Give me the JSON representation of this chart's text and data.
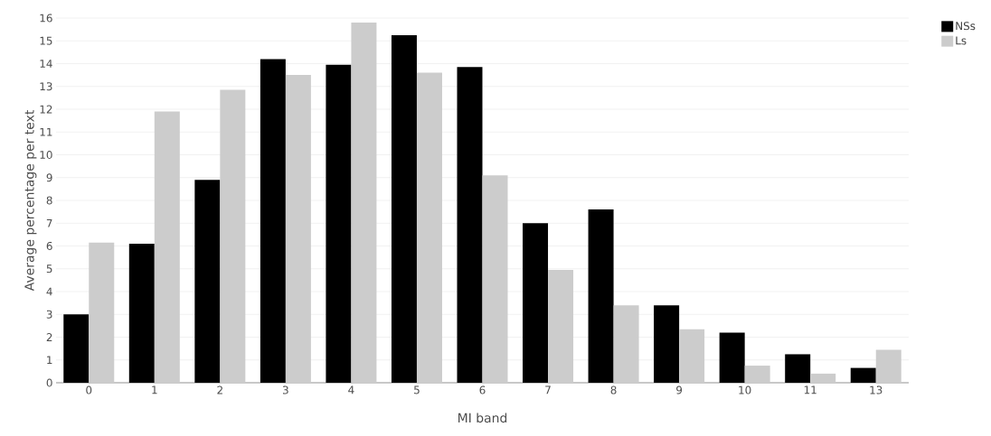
{
  "chart_data": {
    "type": "bar",
    "xlabel": "MI band",
    "ylabel": "Average percentage per text",
    "categories": [
      "0",
      "1",
      "2",
      "3",
      "4",
      "5",
      "6",
      "7",
      "8",
      "9",
      "10",
      "11",
      "13"
    ],
    "series": [
      {
        "name": "NSs",
        "color": "#000000",
        "values": [
          3.0,
          6.1,
          8.9,
          14.2,
          13.95,
          15.25,
          13.85,
          7.0,
          7.6,
          3.4,
          2.2,
          1.25,
          0.65
        ]
      },
      {
        "name": "Ls",
        "color": "#cccccc",
        "values": [
          6.15,
          11.9,
          12.85,
          13.5,
          15.8,
          13.6,
          9.1,
          4.95,
          3.4,
          2.35,
          0.75,
          0.4,
          1.45
        ]
      }
    ],
    "ylim": [
      0,
      16
    ],
    "yticks": [
      0,
      1,
      2,
      3,
      4,
      5,
      6,
      7,
      8,
      9,
      10,
      11,
      12,
      13,
      14,
      15,
      16
    ],
    "grid": "y",
    "legend": "top right"
  }
}
